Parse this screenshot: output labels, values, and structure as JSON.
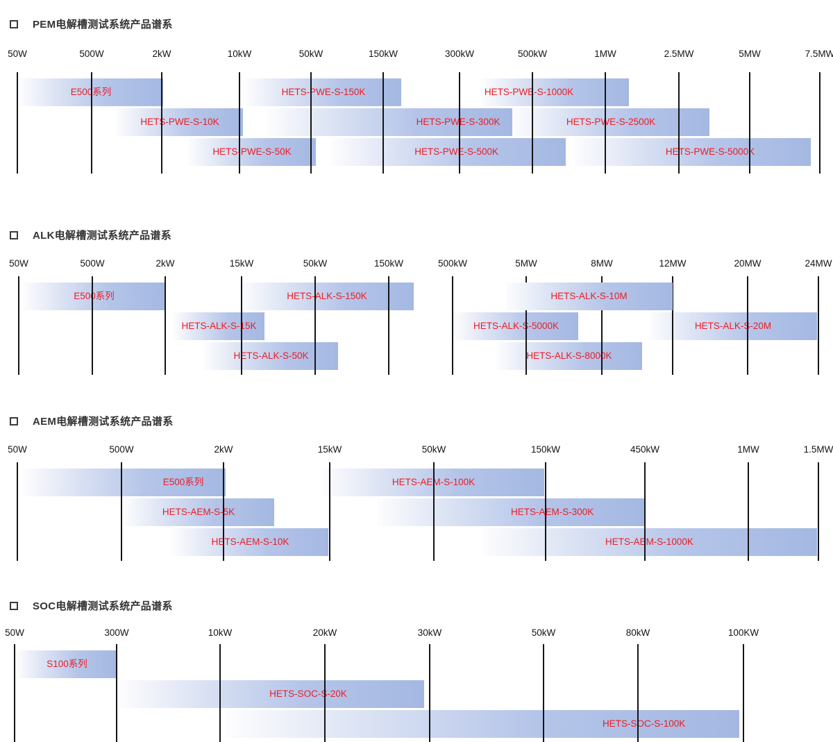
{
  "colors": {
    "bar_gradient_start": "#fdfdfe",
    "bar_gradient_end": "#a4b8e2",
    "bar_label_red": "#ed1c24",
    "gridline_black": "#141414",
    "title_gray": "#333333",
    "tick_black": "#141414"
  },
  "chart_data": [
    {
      "id": "pem",
      "type": "bar",
      "variant": "power-range-spectrum",
      "title": "PEM电解槽测试系统产品谱系",
      "ticks": [
        {
          "label": "50W",
          "x_pct": 2.08
        },
        {
          "label": "500W",
          "x_pct": 11.0
        },
        {
          "label": "2kW",
          "x_pct": 19.42
        },
        {
          "label": "10kW",
          "x_pct": 28.75
        },
        {
          "label": "50kW",
          "x_pct": 37.33
        },
        {
          "label": "150kW",
          "x_pct": 46.0
        },
        {
          "label": "300kW",
          "x_pct": 55.17
        },
        {
          "label": "500kW",
          "x_pct": 63.92
        },
        {
          "label": "1MW",
          "x_pct": 72.67
        },
        {
          "label": "2.5MW",
          "x_pct": 81.5
        },
        {
          "label": "5MW",
          "x_pct": 90.0
        },
        {
          "label": "7.5MW",
          "x_pct": 98.42
        }
      ],
      "rows": [
        [
          {
            "label": "E500系列",
            "start_pct": 2.25,
            "end_pct": 19.58
          },
          {
            "label": "HETS-PWE-S-150K",
            "start_pct": 29.5,
            "end_pct": 48.17
          },
          {
            "label": "HETS-PWE-S-1000K",
            "start_pct": 57.75,
            "end_pct": 75.5,
            "label_x_pct": 63.5
          }
        ],
        [
          {
            "label": "HETS-PWE-S-10K",
            "start_pct": 14.0,
            "end_pct": 29.17
          },
          {
            "label": "HETS-PWE-S-300K",
            "start_pct": 32.08,
            "end_pct": 61.5,
            "label_x_pct": 55.0
          },
          {
            "label": "HETS-PWE-S-2500K",
            "start_pct": 61.5,
            "end_pct": 85.17
          }
        ],
        [
          {
            "label": "HETS-PWE-S-50K",
            "start_pct": 22.58,
            "end_pct": 37.92
          },
          {
            "label": "HETS-PWE-S-500K",
            "start_pct": 39.75,
            "end_pct": 67.92,
            "label_x_pct": 54.8
          },
          {
            "label": "HETS-PWE-S-5000K",
            "start_pct": 68.92,
            "end_pct": 97.33,
            "label_x_pct": 85.25
          }
        ]
      ]
    },
    {
      "id": "alk",
      "type": "bar",
      "variant": "power-range-spectrum",
      "title": "ALK电解槽测试系统产品谱系",
      "ticks": [
        {
          "label": "50W",
          "x_pct": 2.25
        },
        {
          "label": "500W",
          "x_pct": 11.08
        },
        {
          "label": "2kW",
          "x_pct": 19.83
        },
        {
          "label": "15kW",
          "x_pct": 29.0
        },
        {
          "label": "50kW",
          "x_pct": 37.83
        },
        {
          "label": "150kW",
          "x_pct": 46.67
        },
        {
          "label": "500kW",
          "x_pct": 54.33
        },
        {
          "label": "5MW",
          "x_pct": 63.17
        },
        {
          "label": "8MW",
          "x_pct": 72.25
        },
        {
          "label": "12MW",
          "x_pct": 80.75
        },
        {
          "label": "20MW",
          "x_pct": 89.75
        },
        {
          "label": "24MW",
          "x_pct": 98.25
        }
      ],
      "rows": [
        [
          {
            "label": "E500系列",
            "start_pct": 2.75,
            "end_pct": 19.83
          },
          {
            "label": "HETS-ALK-S-150K",
            "start_pct": 28.83,
            "end_pct": 49.67
          },
          {
            "label": "HETS-ALK-S-10M",
            "start_pct": 60.67,
            "end_pct": 80.75,
            "over_gridlines": true
          }
        ],
        [
          {
            "label": "HETS-ALK-S-15K",
            "start_pct": 20.83,
            "end_pct": 31.75
          },
          {
            "label": "HETS-ALK-S-5000K",
            "start_pct": 54.5,
            "end_pct": 69.42
          },
          {
            "label": "HETS-ALK-S-20M",
            "start_pct": 77.92,
            "end_pct": 98.08
          }
        ],
        [
          {
            "label": "HETS-ALK-S-50K",
            "start_pct": 24.5,
            "end_pct": 40.58
          },
          {
            "label": "HETS-ALK-S-8000K",
            "start_pct": 59.58,
            "end_pct": 77.08
          }
        ]
      ]
    },
    {
      "id": "aem",
      "type": "bar",
      "variant": "power-range-spectrum",
      "title": "AEM电解槽测试系统产品谱系",
      "ticks": [
        {
          "label": "50W",
          "x_pct": 2.08
        },
        {
          "label": "500W",
          "x_pct": 14.58
        },
        {
          "label": "2kW",
          "x_pct": 26.83
        },
        {
          "label": "15kW",
          "x_pct": 39.58
        },
        {
          "label": "50kW",
          "x_pct": 52.08
        },
        {
          "label": "150kW",
          "x_pct": 65.5
        },
        {
          "label": "450kW",
          "x_pct": 77.42
        },
        {
          "label": "1MW",
          "x_pct": 89.83
        },
        {
          "label": "1.5MW",
          "x_pct": 98.25
        }
      ],
      "rows": [
        [
          {
            "label": "E500系列",
            "start_pct": 2.67,
            "end_pct": 27.08,
            "label_x_pct": 22.0
          },
          {
            "label": "HETS-AEM-S-100K",
            "start_pct": 38.75,
            "end_pct": 65.33
          }
        ],
        [
          {
            "label": "HETS-AEM-S-5K",
            "start_pct": 14.75,
            "end_pct": 32.92
          },
          {
            "label": "HETS-AEM-S-300K",
            "start_pct": 45.25,
            "end_pct": 77.42,
            "label_x_pct": 66.3
          }
        ],
        [
          {
            "label": "HETS-AEM-S-10K",
            "start_pct": 20.67,
            "end_pct": 39.42
          },
          {
            "label": "HETS-AEM-S-1000K",
            "start_pct": 57.83,
            "end_pct": 98.08
          }
        ]
      ]
    },
    {
      "id": "soc",
      "type": "bar",
      "variant": "power-range-spectrum",
      "title": "SOC电解槽测试系统产品谱系",
      "ticks": [
        {
          "label": "50W",
          "x_pct": 1.75
        },
        {
          "label": "300W",
          "x_pct": 14.0
        },
        {
          "label": "10kW",
          "x_pct": 26.42
        },
        {
          "label": "20kW",
          "x_pct": 39.0
        },
        {
          "label": "30kW",
          "x_pct": 51.58
        },
        {
          "label": "50kW",
          "x_pct": 65.25
        },
        {
          "label": "80kW",
          "x_pct": 76.58
        },
        {
          "label": "100KW",
          "x_pct": 89.25
        }
      ],
      "rows": [
        [
          {
            "label": "S100系列",
            "start_pct": 2.0,
            "end_pct": 14.08
          }
        ],
        [
          {
            "label": "HETS-SOC-S-20K",
            "start_pct": 14.25,
            "end_pct": 50.92,
            "label_x_pct": 37.0
          }
        ],
        [
          {
            "label": "HETS-SOC-S-100K",
            "start_pct": 27.08,
            "end_pct": 88.75,
            "label_x_pct": 77.3
          }
        ]
      ]
    }
  ]
}
